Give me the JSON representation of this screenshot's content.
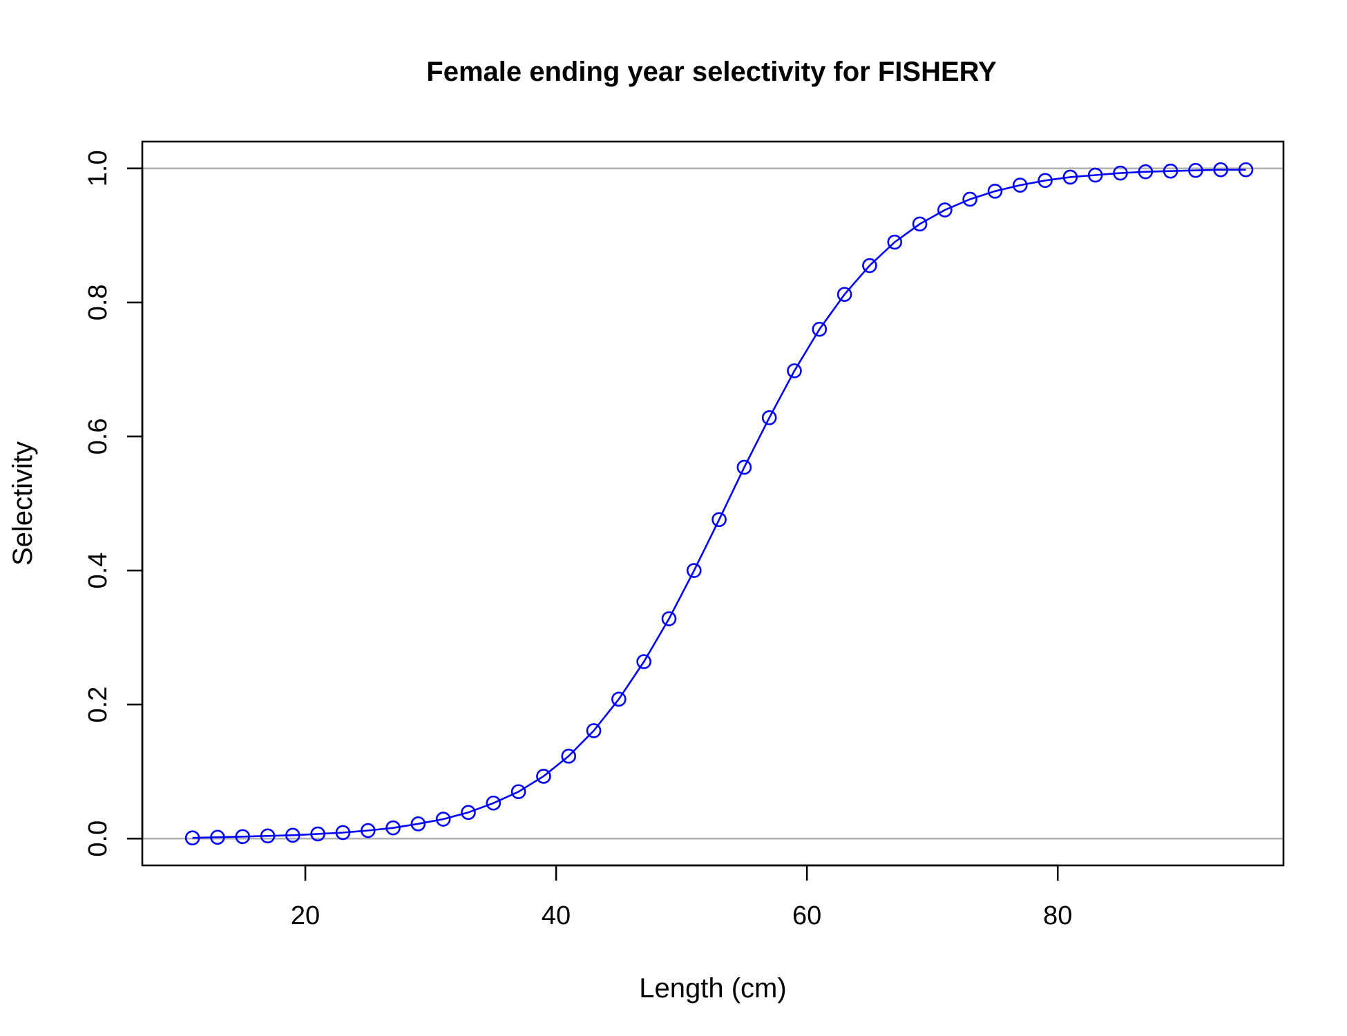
{
  "chart_data": {
    "type": "line",
    "title": "Female ending year selectivity for FISHERY",
    "xlabel": "Length (cm)",
    "ylabel": "Selectivity",
    "xlim": [
      7,
      98
    ],
    "ylim": [
      -0.04,
      1.04
    ],
    "x_ticks": [
      20,
      40,
      60,
      80
    ],
    "x_tick_labels": [
      "20",
      "40",
      "60",
      "80"
    ],
    "y_ticks": [
      0,
      0.2,
      0.4,
      0.6,
      0.8,
      1.0
    ],
    "y_tick_labels": [
      "0.0",
      "0.2",
      "0.4",
      "0.6",
      "0.8",
      "1.0"
    ],
    "reference_lines": [
      0,
      1
    ],
    "grid": false,
    "series": [
      {
        "color": "#0000ff",
        "marker": "open-circle",
        "x": [
          11,
          13,
          15,
          17,
          19,
          21,
          23,
          25,
          27,
          29,
          31,
          33,
          35,
          37,
          39,
          41,
          43,
          45,
          47,
          49,
          51,
          53,
          55,
          57,
          59,
          61,
          63,
          65,
          67,
          69,
          71,
          73,
          75,
          77,
          79,
          81,
          83,
          85,
          87,
          89,
          91,
          93,
          95
        ],
        "y": [
          0.001,
          0.002,
          0.003,
          0.004,
          0.005,
          0.007,
          0.009,
          0.012,
          0.016,
          0.022,
          0.029,
          0.039,
          0.053,
          0.07,
          0.093,
          0.123,
          0.161,
          0.208,
          0.264,
          0.328,
          0.4,
          0.476,
          0.554,
          0.628,
          0.698,
          0.76,
          0.812,
          0.855,
          0.89,
          0.917,
          0.938,
          0.954,
          0.966,
          0.975,
          0.982,
          0.987,
          0.99,
          0.993,
          0.995,
          0.996,
          0.997,
          0.998,
          0.998
        ]
      }
    ],
    "colors": {
      "series": "#0000ff",
      "reference_line": "#b3b3b3",
      "axes": "#000000"
    }
  }
}
